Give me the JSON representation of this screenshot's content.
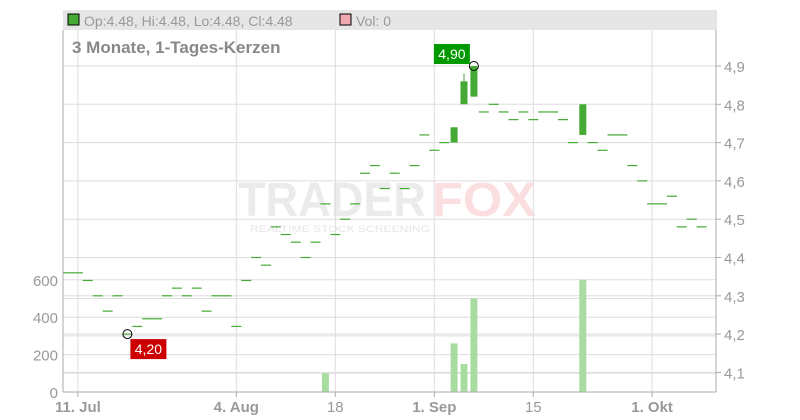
{
  "legend": {
    "ohlc": "Op:4.48, Hi:4.48, Lo:4.48, Cl:4.48",
    "vol": "Vol: 0",
    "ohlc_color": "#44aa33",
    "vol_color": "#f0a8b0"
  },
  "watermark": {
    "brand": "TRADERFOX",
    "tagline": "REALTIME STOCK SCREENING"
  },
  "chart_data": {
    "type": "candlestick",
    "title": "3 Monate, 1-Tages-Kerzen",
    "up_color": "#44aa33",
    "volume_color": "#a8dca0",
    "price_axis": {
      "position": "right",
      "range": [
        4.05,
        4.95
      ],
      "ticks": [
        "4,1",
        "4,2",
        "4,3",
        "4,4",
        "4,5",
        "4,6",
        "4,7",
        "4,8",
        "4,9"
      ],
      "tick_values": [
        4.1,
        4.2,
        4.3,
        4.4,
        4.5,
        4.6,
        4.7,
        4.8,
        4.9
      ]
    },
    "volume_axis": {
      "position": "left",
      "range": [
        0,
        800
      ],
      "ticks": [
        "0",
        "200",
        "400",
        "600"
      ],
      "tick_values": [
        0,
        200,
        400,
        600
      ]
    },
    "x_ticks": [
      {
        "label": "11. Jul",
        "index": 1,
        "bold": true
      },
      {
        "label": "4. Aug",
        "index": 17,
        "bold": true
      },
      {
        "label": "18",
        "index": 27,
        "bold": false
      },
      {
        "label": "1. Sep",
        "index": 37,
        "bold": true
      },
      {
        "label": "15",
        "index": 47,
        "bold": false
      },
      {
        "label": "1. Okt",
        "index": 59,
        "bold": true
      }
    ],
    "grid": true,
    "candles": [
      [
        4.36,
        4.36,
        4.36,
        4.36
      ],
      [
        4.36,
        4.36,
        4.36,
        4.36
      ],
      [
        4.34,
        4.34,
        4.34,
        4.34
      ],
      [
        4.3,
        4.3,
        4.3,
        4.3
      ],
      [
        4.26,
        4.26,
        4.26,
        4.26
      ],
      [
        4.3,
        4.3,
        4.3,
        4.3
      ],
      [
        4.2,
        4.2,
        4.2,
        4.2
      ],
      [
        4.22,
        4.22,
        4.22,
        4.22
      ],
      [
        4.24,
        4.24,
        4.24,
        4.24
      ],
      [
        4.24,
        4.24,
        4.24,
        4.24
      ],
      [
        4.3,
        4.3,
        4.3,
        4.3
      ],
      [
        4.32,
        4.32,
        4.32,
        4.32
      ],
      [
        4.3,
        4.3,
        4.3,
        4.3
      ],
      [
        4.32,
        4.32,
        4.32,
        4.32
      ],
      [
        4.26,
        4.26,
        4.26,
        4.26
      ],
      [
        4.3,
        4.3,
        4.3,
        4.3
      ],
      [
        4.3,
        4.3,
        4.3,
        4.3
      ],
      [
        4.22,
        4.22,
        4.22,
        4.22
      ],
      [
        4.34,
        4.34,
        4.34,
        4.34
      ],
      [
        4.4,
        4.4,
        4.4,
        4.4
      ],
      [
        4.38,
        4.38,
        4.38,
        4.38
      ],
      [
        4.48,
        4.48,
        4.48,
        4.48
      ],
      [
        4.46,
        4.46,
        4.46,
        4.46
      ],
      [
        4.44,
        4.44,
        4.44,
        4.44
      ],
      [
        4.4,
        4.4,
        4.4,
        4.4
      ],
      [
        4.44,
        4.44,
        4.44,
        4.44
      ],
      [
        4.54,
        4.54,
        4.54,
        4.54
      ],
      [
        4.46,
        4.46,
        4.46,
        4.46
      ],
      [
        4.5,
        4.5,
        4.5,
        4.5
      ],
      [
        4.54,
        4.54,
        4.54,
        4.54
      ],
      [
        4.62,
        4.62,
        4.62,
        4.62
      ],
      [
        4.64,
        4.64,
        4.64,
        4.64
      ],
      [
        4.58,
        4.58,
        4.58,
        4.58
      ],
      [
        4.62,
        4.62,
        4.62,
        4.62
      ],
      [
        4.58,
        4.58,
        4.58,
        4.58
      ],
      [
        4.64,
        4.64,
        4.64,
        4.64
      ],
      [
        4.72,
        4.72,
        4.72,
        4.72
      ],
      [
        4.68,
        4.68,
        4.68,
        4.68
      ],
      [
        4.7,
        4.7,
        4.7,
        4.7
      ],
      [
        4.7,
        4.74,
        4.7,
        4.74
      ],
      [
        4.8,
        4.88,
        4.8,
        4.86
      ],
      [
        4.82,
        4.9,
        4.82,
        4.9
      ],
      [
        4.78,
        4.78,
        4.78,
        4.78
      ],
      [
        4.8,
        4.8,
        4.8,
        4.8
      ],
      [
        4.78,
        4.78,
        4.78,
        4.78
      ],
      [
        4.76,
        4.76,
        4.76,
        4.76
      ],
      [
        4.78,
        4.78,
        4.78,
        4.78
      ],
      [
        4.76,
        4.76,
        4.76,
        4.76
      ],
      [
        4.78,
        4.78,
        4.78,
        4.78
      ],
      [
        4.78,
        4.78,
        4.78,
        4.78
      ],
      [
        4.76,
        4.76,
        4.76,
        4.76
      ],
      [
        4.7,
        4.7,
        4.7,
        4.7
      ],
      [
        4.72,
        4.8,
        4.72,
        4.8
      ],
      [
        4.7,
        4.7,
        4.7,
        4.7
      ],
      [
        4.68,
        4.68,
        4.68,
        4.68
      ],
      [
        4.72,
        4.72,
        4.72,
        4.72
      ],
      [
        4.72,
        4.72,
        4.72,
        4.72
      ],
      [
        4.64,
        4.64,
        4.64,
        4.64
      ],
      [
        4.6,
        4.6,
        4.6,
        4.6
      ],
      [
        4.54,
        4.54,
        4.54,
        4.54
      ],
      [
        4.54,
        4.54,
        4.54,
        4.54
      ],
      [
        4.56,
        4.56,
        4.56,
        4.56
      ],
      [
        4.48,
        4.48,
        4.48,
        4.48
      ],
      [
        4.5,
        4.5,
        4.5,
        4.5
      ],
      [
        4.48,
        4.48,
        4.48,
        4.48
      ]
    ],
    "volumes": [
      {
        "index": 26,
        "value": 100
      },
      {
        "index": 39,
        "value": 260
      },
      {
        "index": 40,
        "value": 150
      },
      {
        "index": 41,
        "value": 500
      },
      {
        "index": 52,
        "value": 600
      }
    ],
    "annotations": [
      {
        "label": "4,90",
        "type": "high",
        "index": 41,
        "value": 4.9,
        "color": "#009900"
      },
      {
        "label": "4,20",
        "type": "low",
        "index": 6,
        "value": 4.2,
        "color": "#cc0000"
      }
    ]
  }
}
